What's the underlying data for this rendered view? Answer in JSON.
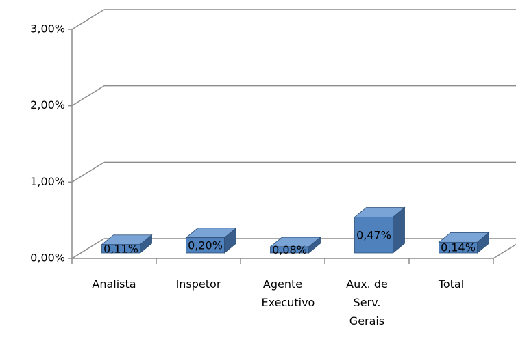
{
  "chart_data": {
    "type": "bar3d",
    "categories": [
      "Analista",
      "Inspetor",
      "Agente Executivo",
      "Aux. de Serv. Gerais",
      "Total"
    ],
    "values": [
      0.11,
      0.2,
      0.08,
      0.47,
      0.14
    ],
    "value_labels": [
      "0,11%",
      "0,20%",
      "0,08%",
      "0,47%",
      "0,14%"
    ],
    "color": "#4f81bd",
    "ylim": [
      0,
      3
    ],
    "yticks": [
      {
        "value": 0,
        "label": "0,00%"
      },
      {
        "value": 1,
        "label": "1,00%"
      },
      {
        "value": 2,
        "label": "2,00%"
      },
      {
        "value": 3,
        "label": "3,00%"
      }
    ],
    "grid": true
  }
}
